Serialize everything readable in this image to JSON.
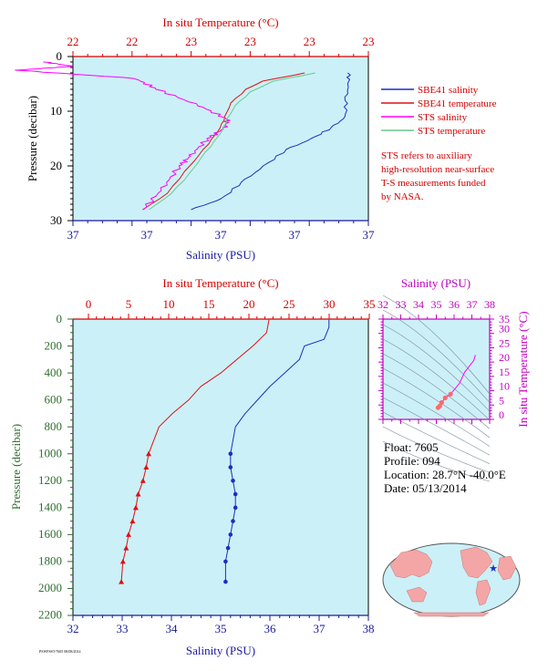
{
  "colors": {
    "plot_bg": "#ccf0f8",
    "salinity": "#1a2fc0",
    "temperature": "#e01010",
    "sts_salinity": "#ff00ff",
    "sts_temperature": "#66cc88",
    "axis_red": "#d40000",
    "axis_blue": "#1a1aa0",
    "axis_green": "#2e6e2e",
    "axis_magenta": "#c000c0"
  },
  "top_chart": {
    "top_axis_title": "In situ Temperature (°C)",
    "top_tick_labels": [
      "22",
      "22",
      "23",
      "23",
      "23",
      "23"
    ],
    "bottom_axis_title": "Salinity (PSU)",
    "bottom_tick_labels": [
      "37",
      "37",
      "37",
      "37",
      "37"
    ],
    "y_axis_title": "Pressure (decibar)",
    "y_tick_labels": [
      "0",
      "10",
      "20",
      "30"
    ],
    "legend": [
      {
        "label": "SBE41 salinity",
        "color": "#1a2fc0"
      },
      {
        "label": "SBE41 temperature",
        "color": "#e01010"
      },
      {
        "label": "STS salinity",
        "color": "#ff00ff"
      },
      {
        "label": "STS temperature",
        "color": "#66cc88"
      }
    ],
    "note_lines": [
      "STS refers to auxiliary",
      "high-resolution near-surface",
      "T-S measurements funded",
      "by NASA."
    ]
  },
  "main_chart": {
    "top_axis_title": "In situ Temperature (°C)",
    "top_tick_labels": [
      "0",
      "5",
      "10",
      "15",
      "20",
      "25",
      "30",
      "35"
    ],
    "bottom_axis_title": "Salinity (PSU)",
    "bottom_tick_labels": [
      "32",
      "33",
      "34",
      "35",
      "36",
      "37",
      "38"
    ],
    "y_axis_title": "Pressure (decibar)",
    "y_tick_labels": [
      "0",
      "200",
      "400",
      "600",
      "800",
      "1000",
      "1200",
      "1400",
      "1600",
      "1800",
      "2000",
      "2200"
    ]
  },
  "ts_chart": {
    "top_axis_title": "Salinity (PSU)",
    "top_tick_labels": [
      "32",
      "33",
      "34",
      "35",
      "36",
      "37",
      "38"
    ],
    "right_axis_title": "In situ Temperature (°C)",
    "right_tick_labels": [
      "0",
      "5",
      "10",
      "15",
      "20",
      "25",
      "30",
      "35"
    ]
  },
  "float_info": {
    "float_line": "Float:  7605",
    "profile_line": "Profile:  094",
    "location_line": "Location:  28.7°N  -40.0°E",
    "date_line": "Date:  05/13/2014"
  },
  "footer_code": "PSWFSST-7605 08/08/2014",
  "chart_data": [
    {
      "type": "line",
      "title": "",
      "xlabel": "Salinity (PSU)",
      "x2label": "In situ Temperature (°C)",
      "ylabel": "Pressure (decibar)",
      "ylim": [
        30,
        0
      ],
      "series": [
        {
          "name": "SBE41 salinity",
          "axis": "salinity",
          "x": [
            37.28,
            37.28,
            37.27,
            37.27,
            37.22,
            37.15,
            37.06,
            36.98,
            36.9,
            36.83,
            36.72
          ],
          "y": [
            3,
            5,
            8,
            11,
            13,
            15,
            17,
            20,
            23,
            26,
            28
          ]
        },
        {
          "name": "SBE41 temperature",
          "axis": "temperature",
          "x": [
            23.1,
            22.9,
            22.82,
            22.75,
            22.72,
            22.7,
            22.66,
            22.6,
            22.53,
            22.45,
            22.33
          ],
          "y": [
            3,
            4.5,
            6,
            8.5,
            11,
            13,
            15,
            18,
            21,
            25,
            28
          ]
        },
        {
          "name": "STS salinity",
          "axis": "salinity",
          "x": [
            36.2,
            36.3,
            36.1,
            36.52,
            36.6,
            36.75,
            36.85,
            36.84,
            36.78,
            36.72,
            36.68,
            36.62,
            36.55
          ],
          "y": [
            1,
            1.8,
            2.5,
            4,
            6,
            9,
            11.5,
            13,
            15,
            18,
            20,
            24,
            28
          ]
        },
        {
          "name": "STS temperature",
          "axis": "temperature",
          "x": [
            23.15,
            22.95,
            22.84,
            22.77,
            22.73,
            22.71,
            22.67,
            22.61,
            22.55,
            22.47,
            22.36
          ],
          "y": [
            3,
            4.5,
            6.5,
            9,
            11.5,
            13.5,
            15.5,
            18.5,
            21.5,
            25,
            28
          ]
        }
      ]
    },
    {
      "type": "line",
      "title": "",
      "xlabel": "Salinity (PSU)",
      "xlim": [
        32,
        38
      ],
      "x2label": "In situ Temperature (°C)",
      "x2lim": [
        0,
        35
      ],
      "ylabel": "Pressure (decibar)",
      "ylim": [
        2200,
        0
      ],
      "series": [
        {
          "name": "",
          "axis": "salinity",
          "x": [
            37.2,
            37.2,
            37.1,
            36.7,
            36.6,
            36.3,
            36.0,
            35.75,
            35.5,
            35.3,
            35.2,
            35.2,
            35.25,
            35.3,
            35.3,
            35.25,
            35.2,
            35.15,
            35.1,
            35.1
          ],
          "y": [
            5,
            60,
            150,
            200,
            300,
            400,
            500,
            600,
            700,
            800,
            1000,
            1100,
            1200,
            1300,
            1400,
            1500,
            1600,
            1700,
            1800,
            1950
          ]
        },
        {
          "name": "",
          "axis": "temperature",
          "x": [
            22.5,
            22.2,
            20.5,
            18.5,
            16.5,
            14.0,
            12.5,
            10.5,
            8.8,
            7.5,
            7.2,
            6.8,
            6.2,
            5.9,
            5.5,
            5.0,
            4.7,
            4.3,
            4.1
          ],
          "y": [
            5,
            100,
            200,
            300,
            400,
            500,
            600,
            700,
            800,
            1000,
            1100,
            1200,
            1300,
            1400,
            1500,
            1600,
            1700,
            1800,
            1950
          ]
        }
      ]
    },
    {
      "type": "scatter",
      "title": "",
      "xlabel": "Salinity (PSU)",
      "xlim": [
        32,
        38
      ],
      "ylabel": "In situ Temperature (°C)",
      "ylim": [
        0,
        35
      ],
      "series": [
        {
          "name": "",
          "x": [
            35.1,
            35.2,
            35.3,
            35.5,
            35.8,
            36.3,
            36.6,
            37.1,
            37.2
          ],
          "y": [
            4.1,
            4.7,
            5.9,
            7.5,
            8.8,
            12.5,
            16.5,
            20.5,
            22.5
          ]
        }
      ]
    }
  ]
}
